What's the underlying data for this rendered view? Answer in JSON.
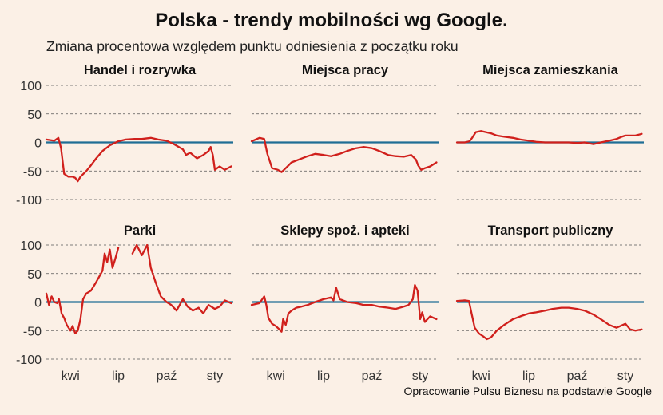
{
  "title": "Polska - trendy mobilności wg Google.",
  "subtitle": "Zmiana procentowa względem punktu odniesienia z początku roku",
  "caption": "Opracowanie Pulsu Biznesu na podstawie Google",
  "colors": {
    "line": "#D0201C",
    "zero": "#1F6E95",
    "grid": "#555555",
    "background": "#FBF0E6"
  },
  "chart_data": [
    {
      "type": "line",
      "title": "Handel i rozrywka",
      "x_ticks": [
        "kwi",
        "lip",
        "paź",
        "sty"
      ],
      "y_ticks": [
        100,
        50,
        0,
        -50,
        -100
      ],
      "ylim": [
        -110,
        110
      ],
      "x_range": [
        "2020-02-15",
        "2021-02-05"
      ],
      "x": [
        "2020-02-15",
        "2020-03-01",
        "2020-03-09",
        "2020-03-14",
        "2020-03-20",
        "2020-03-28",
        "2020-04-05",
        "2020-04-10",
        "2020-04-15",
        "2020-04-20",
        "2020-05-01",
        "2020-05-10",
        "2020-05-20",
        "2020-06-01",
        "2020-06-15",
        "2020-07-01",
        "2020-07-15",
        "2020-08-01",
        "2020-08-15",
        "2020-09-01",
        "2020-09-15",
        "2020-10-01",
        "2020-10-15",
        "2020-11-01",
        "2020-11-07",
        "2020-11-15",
        "2020-11-28",
        "2020-12-10",
        "2020-12-20",
        "2020-12-24",
        "2020-12-28",
        "2021-01-01",
        "2021-01-10",
        "2021-01-20",
        "2021-02-01"
      ],
      "values": [
        5,
        3,
        8,
        -10,
        -55,
        -60,
        -60,
        -62,
        -68,
        -60,
        -50,
        -40,
        -28,
        -15,
        -5,
        2,
        5,
        6,
        6,
        8,
        5,
        3,
        -3,
        -12,
        -22,
        -18,
        -28,
        -22,
        -15,
        -8,
        -22,
        -48,
        -42,
        -48,
        -42
      ]
    },
    {
      "type": "line",
      "title": "Miejsca pracy",
      "x_ticks": [
        "kwi",
        "lip",
        "paź",
        "sty"
      ],
      "y_ticks": [
        100,
        50,
        0,
        -50,
        -100
      ],
      "ylim": [
        -110,
        110
      ],
      "x_range": [
        "2020-02-15",
        "2021-02-05"
      ],
      "x": [
        "2020-02-15",
        "2020-03-01",
        "2020-03-10",
        "2020-03-16",
        "2020-03-25",
        "2020-04-05",
        "2020-04-12",
        "2020-04-20",
        "2020-05-01",
        "2020-05-15",
        "2020-06-01",
        "2020-06-15",
        "2020-07-01",
        "2020-07-15",
        "2020-08-01",
        "2020-08-15",
        "2020-09-01",
        "2020-09-15",
        "2020-10-01",
        "2020-10-15",
        "2020-11-01",
        "2020-11-15",
        "2020-12-01",
        "2020-12-15",
        "2020-12-24",
        "2020-12-28",
        "2021-01-03",
        "2021-01-10",
        "2021-01-20",
        "2021-02-01"
      ],
      "values": [
        2,
        8,
        6,
        -20,
        -45,
        -48,
        -52,
        -45,
        -35,
        -30,
        -24,
        -20,
        -22,
        -24,
        -20,
        -15,
        -10,
        -8,
        -10,
        -15,
        -22,
        -24,
        -25,
        -22,
        -30,
        -40,
        -48,
        -45,
        -42,
        -35
      ]
    },
    {
      "type": "line",
      "title": "Miejsca zamieszkania",
      "x_ticks": [
        "kwi",
        "lip",
        "paź",
        "sty"
      ],
      "y_ticks": [
        100,
        50,
        0,
        -50,
        -100
      ],
      "ylim": [
        -110,
        110
      ],
      "x_range": [
        "2020-02-15",
        "2021-02-05"
      ],
      "x": [
        "2020-02-15",
        "2020-03-01",
        "2020-03-10",
        "2020-03-15",
        "2020-03-22",
        "2020-04-01",
        "2020-04-10",
        "2020-04-20",
        "2020-05-01",
        "2020-05-15",
        "2020-06-01",
        "2020-06-15",
        "2020-07-01",
        "2020-07-15",
        "2020-08-01",
        "2020-08-15",
        "2020-09-01",
        "2020-09-15",
        "2020-10-01",
        "2020-10-15",
        "2020-11-01",
        "2020-11-15",
        "2020-12-01",
        "2020-12-15",
        "2020-12-25",
        "2021-01-01",
        "2021-01-10",
        "2021-01-20",
        "2021-02-01"
      ],
      "values": [
        0,
        0,
        2,
        8,
        18,
        20,
        18,
        16,
        12,
        10,
        8,
        5,
        3,
        1,
        0,
        0,
        0,
        0,
        -1,
        0,
        -3,
        0,
        3,
        6,
        10,
        12,
        12,
        12,
        15
      ]
    },
    {
      "type": "line",
      "title": "Parki",
      "x_ticks": [
        "kwi",
        "lip",
        "paź",
        "sty"
      ],
      "y_ticks": [
        100,
        50,
        0,
        -50,
        -100
      ],
      "ylim": [
        -110,
        110
      ],
      "x_range": [
        "2020-02-15",
        "2021-02-05"
      ],
      "x": [
        "2020-02-15",
        "2020-02-20",
        "2020-02-25",
        "2020-03-01",
        "2020-03-07",
        "2020-03-10",
        "2020-03-15",
        "2020-03-20",
        "2020-03-25",
        "2020-04-01",
        "2020-04-05",
        "2020-04-10",
        "2020-04-15",
        "2020-04-20",
        "2020-04-25",
        "2020-05-01",
        "2020-05-10",
        "2020-05-20",
        "2020-06-01",
        "2020-06-05",
        "2020-06-10",
        "2020-06-15",
        "2020-06-20",
        "2020-06-25",
        "2020-07-01"
      ],
      "values": [
        15,
        -5,
        10,
        0,
        -2,
        5,
        -20,
        -28,
        -40,
        -50,
        -42,
        -55,
        -50,
        -30,
        5,
        15,
        20,
        35,
        55,
        85,
        70,
        92,
        60,
        75,
        95
      ],
      "x2": [
        "2020-07-28",
        "2020-08-05",
        "2020-08-15",
        "2020-08-25",
        "2020-09-01",
        "2020-09-10",
        "2020-09-20",
        "2020-10-01",
        "2020-10-10",
        "2020-10-20",
        "2020-11-01",
        "2020-11-10",
        "2020-11-20",
        "2020-12-01",
        "2020-12-10",
        "2020-12-20",
        "2021-01-01",
        "2021-01-10",
        "2021-01-20",
        "2021-02-01"
      ],
      "values2": [
        85,
        100,
        82,
        100,
        60,
        35,
        10,
        0,
        -5,
        -15,
        5,
        -8,
        -15,
        -10,
        -20,
        -5,
        -12,
        -8,
        3,
        -2
      ]
    },
    {
      "type": "line",
      "title": "Sklepy spoż. i apteki",
      "x_ticks": [
        "kwi",
        "lip",
        "paź",
        "sty"
      ],
      "y_ticks": [
        100,
        50,
        0,
        -50,
        -100
      ],
      "ylim": [
        -110,
        110
      ],
      "x_range": [
        "2020-02-15",
        "2021-02-05"
      ],
      "x": [
        "2020-02-15",
        "2020-03-01",
        "2020-03-10",
        "2020-03-14",
        "2020-03-18",
        "2020-03-25",
        "2020-04-01",
        "2020-04-08",
        "2020-04-12",
        "2020-04-15",
        "2020-04-20",
        "2020-04-25",
        "2020-05-01",
        "2020-05-10",
        "2020-05-20",
        "2020-06-01",
        "2020-06-15",
        "2020-07-01",
        "2020-07-15",
        "2020-07-20",
        "2020-07-25",
        "2020-08-01",
        "2020-08-15",
        "2020-09-01",
        "2020-09-15",
        "2020-10-01",
        "2020-10-15",
        "2020-11-01",
        "2020-11-15",
        "2020-12-01",
        "2020-12-10",
        "2020-12-18",
        "2020-12-22",
        "2020-12-27",
        "2021-01-01",
        "2021-01-05",
        "2021-01-10",
        "2021-01-20",
        "2021-02-01"
      ],
      "values": [
        -5,
        -2,
        10,
        -5,
        -28,
        -38,
        -42,
        -48,
        -52,
        -30,
        -40,
        -20,
        -15,
        -10,
        -8,
        -5,
        0,
        5,
        8,
        3,
        25,
        5,
        0,
        -2,
        -5,
        -5,
        -8,
        -10,
        -12,
        -8,
        -5,
        5,
        30,
        20,
        -30,
        -18,
        -35,
        -25,
        -30
      ]
    },
    {
      "type": "line",
      "title": "Transport publiczny",
      "x_ticks": [
        "kwi",
        "lip",
        "paź",
        "sty"
      ],
      "y_ticks": [
        100,
        50,
        0,
        -50,
        -100
      ],
      "ylim": [
        -110,
        110
      ],
      "x_range": [
        "2020-02-15",
        "2021-02-05"
      ],
      "x": [
        "2020-02-15",
        "2020-03-01",
        "2020-03-09",
        "2020-03-14",
        "2020-03-20",
        "2020-03-28",
        "2020-04-05",
        "2020-04-12",
        "2020-04-20",
        "2020-05-01",
        "2020-05-15",
        "2020-06-01",
        "2020-06-15",
        "2020-07-01",
        "2020-07-15",
        "2020-08-01",
        "2020-08-15",
        "2020-09-01",
        "2020-09-15",
        "2020-10-01",
        "2020-10-15",
        "2020-11-01",
        "2020-11-15",
        "2020-12-01",
        "2020-12-15",
        "2021-01-01",
        "2021-01-10",
        "2021-01-20",
        "2021-02-01"
      ],
      "values": [
        2,
        3,
        2,
        -20,
        -45,
        -55,
        -60,
        -65,
        -62,
        -50,
        -40,
        -30,
        -25,
        -20,
        -18,
        -15,
        -12,
        -10,
        -10,
        -12,
        -15,
        -22,
        -30,
        -40,
        -45,
        -38,
        -48,
        -50,
        -48
      ]
    }
  ]
}
